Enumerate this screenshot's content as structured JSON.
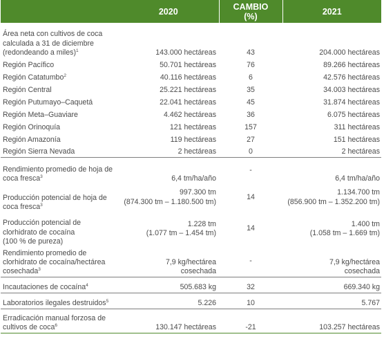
{
  "header": {
    "col_2020": "2020",
    "cambio_line1": "CAMBIO",
    "cambio_line2": "(%)",
    "col_2021": "2021"
  },
  "rows": [
    {
      "label_lines": [
        "Área neta con cultivos de coca",
        "calculada a 31 de diciembre",
        "(redondeando a miles)"
      ],
      "sup": "1",
      "v2020": [
        "143.000 hectáreas"
      ],
      "change": "43",
      "v2021": [
        "204.000 hectáreas"
      ]
    },
    {
      "label_lines": [
        "Región Pacífico"
      ],
      "v2020": [
        "50.701 hectáreas"
      ],
      "change": "76",
      "v2021": [
        "89.266 hectáreas"
      ]
    },
    {
      "label_lines": [
        "Región Catatumbo"
      ],
      "sup": "2",
      "v2020": [
        "40.116 hectáreas"
      ],
      "change": "6",
      "v2021": [
        "42.576 hectáreas"
      ]
    },
    {
      "label_lines": [
        "Región Central"
      ],
      "v2020": [
        "25.221 hectáreas"
      ],
      "change": "35",
      "v2021": [
        "34.003 hectáreas"
      ]
    },
    {
      "label_lines": [
        "Región Putumayo–Caquetá"
      ],
      "v2020": [
        "22.041 hectáreas"
      ],
      "change": "45",
      "v2021": [
        "31.874 hectáreas"
      ]
    },
    {
      "label_lines": [
        "Región Meta–Guaviare"
      ],
      "v2020": [
        "4.462 hectáreas"
      ],
      "change": "36",
      "v2021": [
        "6.075 hectáreas"
      ]
    },
    {
      "label_lines": [
        "Región Orinoquía"
      ],
      "v2020": [
        "121 hectáreas"
      ],
      "change": "157",
      "v2021": [
        "311 hectáreas"
      ]
    },
    {
      "label_lines": [
        "Región Amazonía"
      ],
      "v2020": [
        "119 hectáreas"
      ],
      "change": "27",
      "v2021": [
        "151 hectáreas"
      ]
    },
    {
      "label_lines": [
        "Región Sierra Nevada"
      ],
      "v2020": [
        "2 hectáreas"
      ],
      "change": "0",
      "v2021": [
        "2 hectáreas"
      ]
    },
    {
      "label_lines": [
        "Rendimiento promedio de hoja de",
        "coca fresca"
      ],
      "sup": "3",
      "v2020": [
        "6,4 tm/ha/año"
      ],
      "change": "-",
      "v2021": [
        "6,4 tm/ha/año"
      ]
    },
    {
      "label_lines": [
        "Producción potencial de hoja de",
        "coca fresca"
      ],
      "sup": "3",
      "v2020": [
        "997.300 tm",
        "(874.300 tm – 1.180.500 tm)"
      ],
      "change": "14",
      "v2021": [
        "1.134.700 tm",
        "(856.900 tm – 1.352.200 tm)"
      ]
    },
    {
      "label_lines": [
        "Producción potencial de",
        "clorhidrato de cocaína",
        "(100 % de pureza)"
      ],
      "v2020": [
        "1.228 tm",
        "(1.077 tm – 1.454 tm)"
      ],
      "change": "14",
      "v2021": [
        "1.400 tm",
        "(1.058 tm – 1.669 tm)"
      ]
    },
    {
      "label_lines": [
        "Rendimiento promedio de",
        "clorhidrato de cocaína/hectárea",
        "cosechada"
      ],
      "sup": "3",
      "v2020": [
        "7,9 kg/hectárea",
        "cosechada"
      ],
      "change": "-",
      "v2021": [
        "7,9 kg/hectárea",
        "cosechada"
      ]
    },
    {
      "label_lines": [
        "Incautaciones de cocaína"
      ],
      "sup": "4",
      "v2020": [
        "505.683 kg"
      ],
      "change": "32",
      "v2021": [
        "669.340 kg"
      ]
    },
    {
      "label_lines": [
        "Laboratorios ilegales destruidos"
      ],
      "sup": "5",
      "v2020": [
        "5.226"
      ],
      "change": "10",
      "v2021": [
        "5.767"
      ]
    },
    {
      "label_lines": [
        "Erradicación manual forzosa de",
        "cultivos de coca"
      ],
      "sup": "6",
      "v2020": [
        "130.147 hectáreas"
      ],
      "change": "-21",
      "v2021": [
        "103.257 hectáreas"
      ]
    }
  ]
}
